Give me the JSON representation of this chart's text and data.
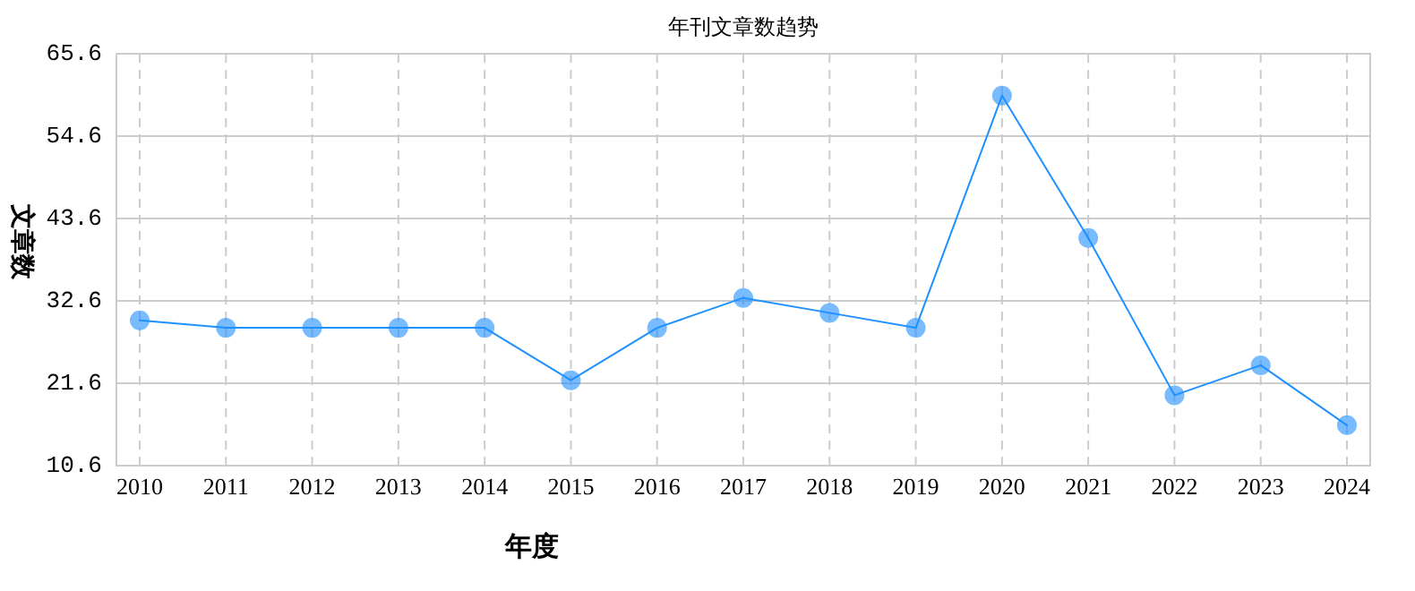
{
  "chart_data": {
    "type": "line",
    "title": "年刊文章数趋势",
    "xlabel": "年度",
    "ylabel": "文章数",
    "categories": [
      "2010",
      "2011",
      "2012",
      "2013",
      "2014",
      "2015",
      "2016",
      "2017",
      "2018",
      "2019",
      "2020",
      "2021",
      "2022",
      "2023",
      "2024"
    ],
    "series": [
      {
        "color": "#1e90ff",
        "values": [
          30,
          29,
          29,
          29,
          29,
          22,
          29,
          33,
          31,
          29,
          60,
          41,
          20,
          24,
          16
        ]
      }
    ],
    "ylim": [
      10.6,
      65.6
    ],
    "yticks": [
      10.6,
      21.6,
      32.6,
      43.6,
      54.6,
      65.6
    ],
    "grid": true,
    "marker": "circle",
    "line_style": "solid"
  }
}
